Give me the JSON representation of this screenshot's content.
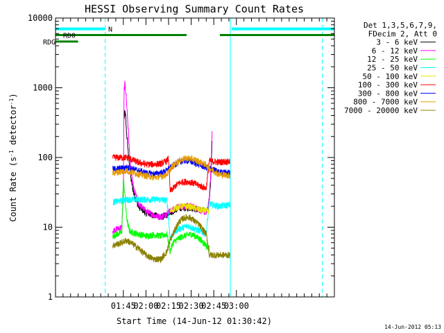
{
  "chart_data": {
    "type": "line",
    "title": "HESSI Observing Summary Count Rates",
    "xlabel": "Start Time (14-Jun-12 01:30:42)",
    "ylabel_main": "Count Rate (s",
    "ylabel_sup1": "-1",
    "ylabel_mid": " detector",
    "ylabel_sup2": "-1",
    "ylabel_end": ")",
    "yscale": "log",
    "ylim": [
      1,
      10000
    ],
    "y_ticks": [
      "1",
      "10",
      "100",
      "1000",
      "10000"
    ],
    "xlim_min": [
      0,
      185
    ],
    "x_ticks": [
      {
        "label": "01:45",
        "min": 45
      },
      {
        "label": "02:00",
        "min": 60
      },
      {
        "label": "02:15",
        "min": 75
      },
      {
        "label": "02:30",
        "min": 90
      },
      {
        "label": "02:45",
        "min": 105
      },
      {
        "label": "03:00",
        "min": 120
      }
    ],
    "legend_header": [
      "Det 1,3,5,6,7,9,",
      "FDecim 2, Att 0"
    ],
    "series": [
      {
        "name": "3 - 6 keV",
        "color": "#000000",
        "x": [
          45.5,
          46,
          46.5,
          47,
          48,
          49,
          50,
          52,
          55,
          60,
          65,
          70,
          74,
          75,
          76,
          78,
          80,
          82,
          85,
          88,
          90,
          95,
          100,
          101,
          102,
          103,
          104
        ],
        "y": [
          350,
          460,
          380,
          250,
          140,
          80,
          50,
          30,
          20,
          16,
          15,
          14,
          15,
          16,
          16,
          17,
          18,
          19,
          19,
          19,
          19,
          18,
          17,
          18,
          25,
          50,
          200
        ]
      },
      {
        "name": "6 - 12 keV",
        "color": "#ff00ff",
        "x": [
          38,
          44,
          45,
          45.5,
          46,
          46.5,
          47,
          48,
          49,
          50,
          52,
          55,
          60,
          65,
          70,
          74,
          75,
          76,
          78,
          80,
          82,
          85,
          88,
          90,
          95,
          100,
          101,
          102,
          103,
          104
        ],
        "y": [
          9,
          10,
          30,
          900,
          1150,
          950,
          700,
          320,
          130,
          60,
          35,
          22,
          17,
          15,
          14,
          16,
          17,
          17,
          18,
          19,
          20,
          20,
          20,
          20,
          18,
          16,
          18,
          25,
          60,
          280
        ]
      },
      {
        "name": "12 - 25 keV",
        "color": "#00ff00",
        "x": [
          38,
          44,
          45,
          46,
          47,
          48,
          49,
          50,
          55,
          60,
          65,
          70,
          74,
          76,
          78,
          80,
          82,
          85,
          88,
          90,
          95,
          100,
          101,
          102
        ],
        "y": [
          7.5,
          8.5,
          50,
          30,
          15,
          11,
          9,
          8.5,
          8,
          7.5,
          7.8,
          7.5,
          8,
          4.5,
          6,
          6.5,
          7,
          7.5,
          7.8,
          8,
          7,
          5.5,
          5,
          5
        ]
      },
      {
        "name": "25 - 50 keV",
        "color": "#00ffff",
        "x": [
          38,
          44,
          47,
          50,
          55,
          60,
          65,
          70,
          74,
          76,
          78,
          80,
          82,
          85,
          88,
          90,
          95,
          100,
          102,
          104,
          108,
          116
        ],
        "y": [
          23,
          24,
          25,
          25,
          25,
          25,
          25,
          25,
          24,
          7,
          8,
          9,
          9.5,
          10,
          10.5,
          10,
          9,
          8,
          22,
          21,
          20,
          21
        ]
      },
      {
        "name": "50 - 100 keV",
        "color": "#e6e600",
        "x": [
          76,
          78,
          80,
          82,
          85,
          88,
          90,
          95,
          100,
          101,
          102
        ],
        "y": [
          17,
          18,
          19,
          20,
          20,
          20,
          19.5,
          18,
          17,
          17,
          17
        ]
      },
      {
        "name": "100 - 300 keV",
        "color": "#ff0000",
        "x": [
          38,
          44,
          47,
          50,
          55,
          60,
          65,
          70,
          74,
          75,
          76,
          78,
          80,
          82,
          85,
          88,
          90,
          95,
          100,
          102,
          104,
          108,
          116
        ],
        "y": [
          100,
          100,
          100,
          95,
          85,
          80,
          80,
          82,
          90,
          100,
          33,
          36,
          40,
          43,
          45,
          45,
          44,
          40,
          36,
          90,
          88,
          86,
          88
        ]
      },
      {
        "name": "300 - 800 keV",
        "color": "#0000ff",
        "x": [
          38,
          44,
          47,
          50,
          55,
          60,
          65,
          70,
          74,
          75,
          76,
          78,
          80,
          82,
          85,
          88,
          90,
          95,
          100,
          102,
          104,
          108,
          116
        ],
        "y": [
          68,
          70,
          72,
          70,
          65,
          60,
          58,
          60,
          65,
          70,
          70,
          76,
          82,
          86,
          90,
          90,
          88,
          80,
          72,
          70,
          68,
          62,
          60
        ]
      },
      {
        "name": "800 - 7000 keV",
        "color": "#e69b00",
        "x": [
          38,
          44,
          47,
          50,
          55,
          60,
          65,
          70,
          74,
          75,
          76,
          78,
          80,
          82,
          85,
          88,
          90,
          95,
          100,
          102,
          104,
          108,
          116
        ],
        "y": [
          60,
          63,
          65,
          62,
          58,
          55,
          52,
          53,
          58,
          62,
          68,
          76,
          84,
          90,
          96,
          98,
          96,
          88,
          78,
          70,
          66,
          58,
          55
        ]
      },
      {
        "name": "7000 - 20000 keV",
        "color": "#8b8000",
        "x": [
          38,
          44,
          47,
          50,
          55,
          60,
          65,
          70,
          74,
          75,
          76,
          78,
          80,
          82,
          85,
          88,
          90,
          95,
          100,
          101,
          102,
          104,
          108,
          116
        ],
        "y": [
          5.5,
          6,
          6.5,
          6,
          5,
          4,
          3.5,
          3.5,
          4.5,
          5.5,
          6.5,
          8,
          10,
          12,
          13.5,
          14,
          13.5,
          11,
          8,
          6,
          4,
          4,
          4,
          4
        ]
      }
    ],
    "annotations": {
      "n_label": "N",
      "rd0_label": "RD0",
      "rdg_label": "RDG"
    },
    "bands": {
      "night": {
        "color": "#00ffff",
        "segments": [
          [
            0,
            33
          ],
          [
            117,
            185
          ]
        ]
      },
      "rd0": {
        "color": "#008000",
        "segments": [
          [
            0,
            87
          ],
          [
            109,
            185
          ]
        ]
      },
      "rdg": {
        "color": "#008000",
        "segments": [
          [
            0,
            15
          ]
        ]
      }
    },
    "vlines": {
      "solid": {
        "color": "#00ffff",
        "min": [
          0,
          116
        ]
      },
      "dashed": {
        "color": "#00ffff",
        "min": [
          33,
          177
        ]
      }
    },
    "timestamp": "14-Jun-2012 05:13"
  }
}
